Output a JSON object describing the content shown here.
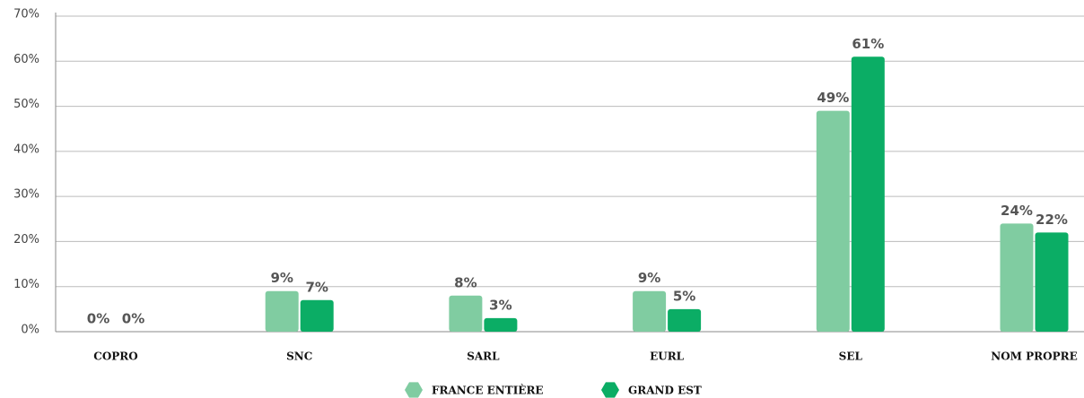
{
  "chart_data": {
    "type": "bar",
    "categories": [
      "COPRO",
      "SNC",
      "SARL",
      "EURL",
      "SEL",
      "NOM PROPRE"
    ],
    "series": [
      {
        "name": "FRANCE ENTIÈRE",
        "color": "#80cca1",
        "values": [
          0,
          9,
          8,
          9,
          49,
          24
        ],
        "value_labels": [
          "0%",
          "9%",
          "8%",
          "9%",
          "49%",
          "24%"
        ]
      },
      {
        "name": "GRAND EST",
        "color": "#0bad65",
        "values": [
          0,
          7,
          3,
          5,
          61,
          22
        ],
        "value_labels": [
          "0%",
          "7%",
          "3%",
          "5%",
          "61%",
          "22%"
        ]
      }
    ],
    "ylim": [
      0,
      70
    ],
    "yticks": [
      {
        "value": 0,
        "label": "0%"
      },
      {
        "value": 10,
        "label": "10%"
      },
      {
        "value": 20,
        "label": "20%"
      },
      {
        "value": 30,
        "label": "30%"
      },
      {
        "value": 40,
        "label": "40%"
      },
      {
        "value": 50,
        "label": "50%"
      },
      {
        "value": 60,
        "label": "60%"
      },
      {
        "value": 70,
        "label": "70%"
      }
    ],
    "grid": true,
    "legend": "bottom"
  }
}
